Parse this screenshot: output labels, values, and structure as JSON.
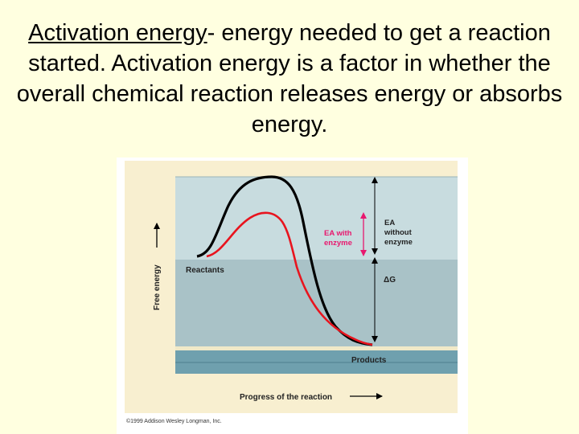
{
  "slide": {
    "term": "Activation energy",
    "definition": "- energy needed to get a reaction started. Activation energy is a factor in whether the overall chemical reaction releases energy or absorbs energy."
  },
  "figure": {
    "y_axis_label": "Free energy",
    "x_axis_label": "Progress of the reaction",
    "reactants_label": "Reactants",
    "products_label": "Products",
    "delta_g_label": "ΔG",
    "ea_without_enzyme": [
      "EA",
      "without",
      "enzyme"
    ],
    "ea_with_enzyme": [
      "EA with",
      "enzyme"
    ],
    "copyright": "©1999 Addison Wesley Longman, Inc.",
    "colors": {
      "without_enzyme_curve": "#000000",
      "with_enzyme_curve": "#e8141e",
      "upper_band": "#c8dcdf",
      "middle_band": "#a9c2c7",
      "products_band": "#6fa0ae"
    }
  }
}
